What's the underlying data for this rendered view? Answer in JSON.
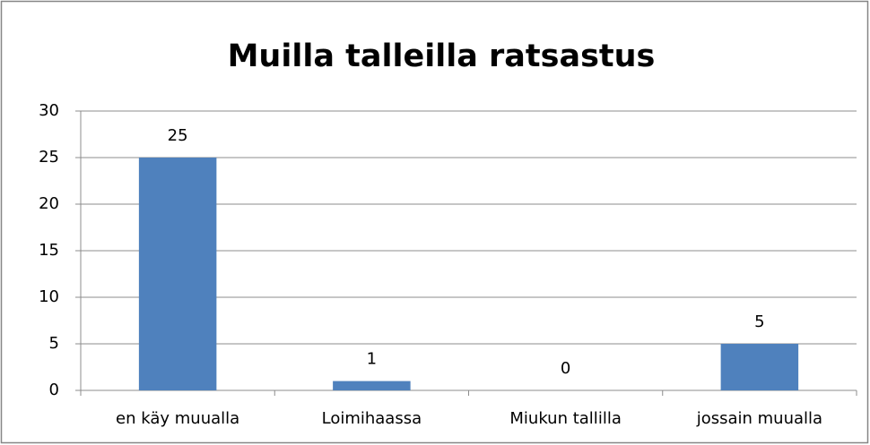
{
  "chart_data": {
    "type": "bar",
    "title": "Muilla talleilla ratsastus",
    "categories": [
      "en käy muualla",
      "Loimihaassa",
      "Miukun tallilla",
      "jossain muualla"
    ],
    "values": [
      25,
      1,
      0,
      5
    ],
    "color": "#4f81bd",
    "ylim": [
      0,
      30
    ],
    "yticks": [
      0,
      5,
      10,
      15,
      20,
      25,
      30
    ],
    "grid": true,
    "data_labels": true
  }
}
